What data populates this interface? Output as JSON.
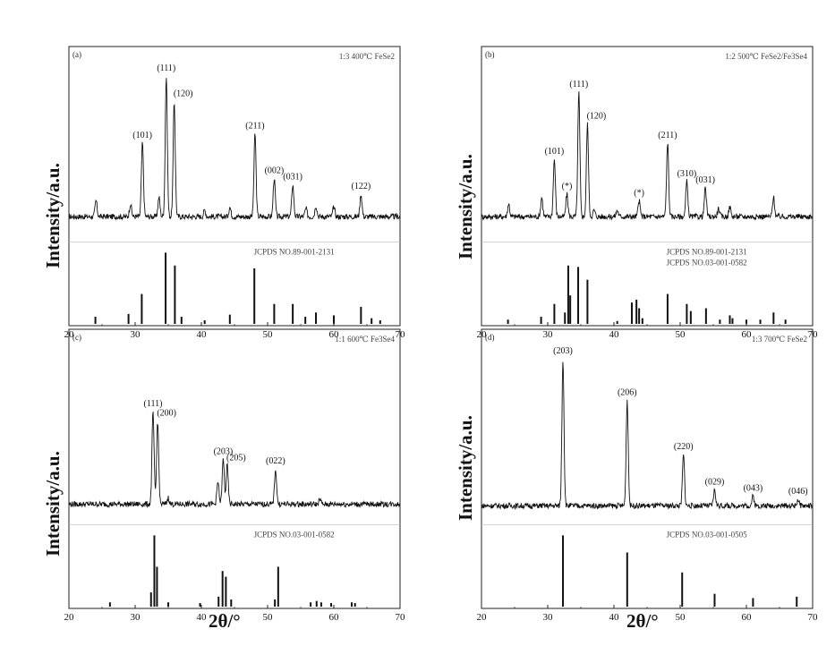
{
  "ylabel": "Intensity/a.u.",
  "xlabel": "2θ/°",
  "chart_data": [
    {
      "type": "line",
      "panel_label": "(a)",
      "sample_label": "1:3 400℃ FeSe2",
      "reference_label": "JCPDS NO.89-001-2131",
      "xlim": [
        20,
        70
      ],
      "x_ticks": [
        20,
        30,
        40,
        50,
        60,
        70
      ],
      "baseline": 0.08,
      "peaks": [
        {
          "x": 24.1,
          "h": 0.1,
          "label": ""
        },
        {
          "x": 29.3,
          "h": 0.08,
          "label": ""
        },
        {
          "x": 31.1,
          "h": 0.46,
          "label": "(101)"
        },
        {
          "x": 33.6,
          "h": 0.12,
          "label": ""
        },
        {
          "x": 34.7,
          "h": 0.88,
          "label": "(111)"
        },
        {
          "x": 35.9,
          "h": 0.72,
          "label": "(120)"
        },
        {
          "x": 40.5,
          "h": 0.04,
          "label": ""
        },
        {
          "x": 44.3,
          "h": 0.06,
          "label": ""
        },
        {
          "x": 48.1,
          "h": 0.52,
          "label": "(211)"
        },
        {
          "x": 51.0,
          "h": 0.24,
          "label": "(002)"
        },
        {
          "x": 53.8,
          "h": 0.2,
          "label": "(031)"
        },
        {
          "x": 55.8,
          "h": 0.05,
          "label": ""
        },
        {
          "x": 57.3,
          "h": 0.07,
          "label": ""
        },
        {
          "x": 60.0,
          "h": 0.06,
          "label": ""
        },
        {
          "x": 64.1,
          "h": 0.14,
          "label": "(122)"
        }
      ],
      "reference_sticks": [
        {
          "x": 24.0,
          "h": 0.1
        },
        {
          "x": 29.0,
          "h": 0.14
        },
        {
          "x": 31.0,
          "h": 0.42
        },
        {
          "x": 34.6,
          "h": 1.0
        },
        {
          "x": 36.0,
          "h": 0.82
        },
        {
          "x": 37.0,
          "h": 0.1
        },
        {
          "x": 40.5,
          "h": 0.05
        },
        {
          "x": 44.3,
          "h": 0.13
        },
        {
          "x": 48.0,
          "h": 0.78
        },
        {
          "x": 51.0,
          "h": 0.28
        },
        {
          "x": 53.8,
          "h": 0.28
        },
        {
          "x": 55.7,
          "h": 0.1
        },
        {
          "x": 57.3,
          "h": 0.16
        },
        {
          "x": 60.0,
          "h": 0.12
        },
        {
          "x": 64.1,
          "h": 0.24
        },
        {
          "x": 65.7,
          "h": 0.08
        },
        {
          "x": 67.0,
          "h": 0.05
        }
      ]
    },
    {
      "type": "line",
      "panel_label": "(b)",
      "sample_label": "1:2 500℃ FeSe2/Fe3Se4",
      "reference_label": "JCPDS NO.89-001-2131\nJCPDS NO.03-001-0582",
      "xlim": [
        20,
        70
      ],
      "x_ticks": [
        20,
        30,
        40,
        50,
        60,
        70
      ],
      "baseline": 0.08,
      "peaks": [
        {
          "x": 24.1,
          "h": 0.08,
          "label": ""
        },
        {
          "x": 29.1,
          "h": 0.12,
          "label": ""
        },
        {
          "x": 31.0,
          "h": 0.36,
          "label": "(101)"
        },
        {
          "x": 32.9,
          "h": 0.14,
          "label": "(*)"
        },
        {
          "x": 34.7,
          "h": 0.78,
          "label": "(111)"
        },
        {
          "x": 36.0,
          "h": 0.58,
          "label": "(120)"
        },
        {
          "x": 37.0,
          "h": 0.04,
          "label": ""
        },
        {
          "x": 40.5,
          "h": 0.04,
          "label": ""
        },
        {
          "x": 43.8,
          "h": 0.1,
          "label": "(*)"
        },
        {
          "x": 48.1,
          "h": 0.46,
          "label": "(211)"
        },
        {
          "x": 51.0,
          "h": 0.22,
          "label": "(310)"
        },
        {
          "x": 53.8,
          "h": 0.18,
          "label": "(031)"
        },
        {
          "x": 55.8,
          "h": 0.05,
          "label": ""
        },
        {
          "x": 57.5,
          "h": 0.06,
          "label": ""
        },
        {
          "x": 64.1,
          "h": 0.12,
          "label": ""
        }
      ],
      "reference_sticks": [
        {
          "x": 24.0,
          "h": 0.06
        },
        {
          "x": 29.0,
          "h": 0.1
        },
        {
          "x": 31.0,
          "h": 0.28
        },
        {
          "x": 32.6,
          "h": 0.16
        },
        {
          "x": 33.1,
          "h": 0.82
        },
        {
          "x": 33.4,
          "h": 0.4
        },
        {
          "x": 34.6,
          "h": 0.8
        },
        {
          "x": 36.0,
          "h": 0.62
        },
        {
          "x": 40.5,
          "h": 0.04
        },
        {
          "x": 42.7,
          "h": 0.3
        },
        {
          "x": 43.4,
          "h": 0.34
        },
        {
          "x": 43.8,
          "h": 0.22
        },
        {
          "x": 44.3,
          "h": 0.08
        },
        {
          "x": 48.1,
          "h": 0.42
        },
        {
          "x": 51.0,
          "h": 0.28
        },
        {
          "x": 51.6,
          "h": 0.18
        },
        {
          "x": 53.9,
          "h": 0.22
        },
        {
          "x": 56.0,
          "h": 0.06
        },
        {
          "x": 57.5,
          "h": 0.12
        },
        {
          "x": 57.9,
          "h": 0.08
        },
        {
          "x": 60.0,
          "h": 0.06
        },
        {
          "x": 62.1,
          "h": 0.06
        },
        {
          "x": 64.1,
          "h": 0.16
        },
        {
          "x": 65.9,
          "h": 0.06
        }
      ]
    },
    {
      "type": "line",
      "panel_label": "(c)",
      "sample_label": "1:1 600℃ Fe3Se4",
      "reference_label": "JCPDS NO.03-001-0582",
      "xlim": [
        20,
        70
      ],
      "x_ticks": [
        20,
        30,
        40,
        50,
        60,
        70
      ],
      "baseline": 0.05,
      "peaks": [
        {
          "x": 32.7,
          "h": 0.58,
          "label": "(111)"
        },
        {
          "x": 33.4,
          "h": 0.52,
          "label": "(200)"
        },
        {
          "x": 35.0,
          "h": 0.04,
          "label": ""
        },
        {
          "x": 42.5,
          "h": 0.14,
          "label": ""
        },
        {
          "x": 43.3,
          "h": 0.28,
          "label": "(203)"
        },
        {
          "x": 43.9,
          "h": 0.24,
          "label": "(205)"
        },
        {
          "x": 51.2,
          "h": 0.22,
          "label": "(022)"
        },
        {
          "x": 57.9,
          "h": 0.03,
          "label": ""
        }
      ],
      "reference_sticks": [
        {
          "x": 26.2,
          "h": 0.06
        },
        {
          "x": 32.4,
          "h": 0.2
        },
        {
          "x": 32.9,
          "h": 1.0
        },
        {
          "x": 33.3,
          "h": 0.56
        },
        {
          "x": 35.0,
          "h": 0.06
        },
        {
          "x": 39.8,
          "h": 0.05
        },
        {
          "x": 42.6,
          "h": 0.14
        },
        {
          "x": 43.2,
          "h": 0.5
        },
        {
          "x": 43.7,
          "h": 0.42
        },
        {
          "x": 44.5,
          "h": 0.1
        },
        {
          "x": 51.1,
          "h": 0.1
        },
        {
          "x": 51.6,
          "h": 0.56
        },
        {
          "x": 56.5,
          "h": 0.06
        },
        {
          "x": 57.4,
          "h": 0.08
        },
        {
          "x": 58.1,
          "h": 0.06
        },
        {
          "x": 59.6,
          "h": 0.05
        },
        {
          "x": 62.7,
          "h": 0.06
        },
        {
          "x": 63.2,
          "h": 0.05
        }
      ]
    },
    {
      "type": "line",
      "panel_label": "(d)",
      "sample_label": "1:3 700℃ FeSe2",
      "reference_label": "JCPDS NO.03-001-0505",
      "xlim": [
        20,
        70
      ],
      "x_ticks": [
        20,
        30,
        40,
        50,
        60,
        70
      ],
      "baseline": 0.04,
      "peaks": [
        {
          "x": 32.3,
          "h": 0.92,
          "label": "(203)"
        },
        {
          "x": 42.0,
          "h": 0.66,
          "label": "(206)"
        },
        {
          "x": 50.5,
          "h": 0.32,
          "label": "(220)"
        },
        {
          "x": 55.2,
          "h": 0.1,
          "label": "(029)"
        },
        {
          "x": 61.0,
          "h": 0.06,
          "label": "(043)"
        },
        {
          "x": 67.8,
          "h": 0.04,
          "label": "(046)"
        }
      ],
      "reference_sticks": [
        {
          "x": 32.3,
          "h": 1.0
        },
        {
          "x": 42.0,
          "h": 0.76
        },
        {
          "x": 50.3,
          "h": 0.48
        },
        {
          "x": 55.2,
          "h": 0.18
        },
        {
          "x": 61.0,
          "h": 0.12
        },
        {
          "x": 67.6,
          "h": 0.14
        }
      ]
    }
  ]
}
